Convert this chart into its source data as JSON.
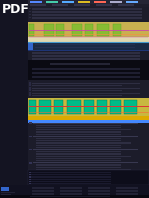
{
  "bg_dark": "#141420",
  "bg_page": "#1c1c2a",
  "bg_black": "#0a0a12",
  "bg_content": "#1a1a28",
  "pdf_color": "#ffffff",
  "pdf_size": 9,
  "nav_bg": "#1e1e2c",
  "nav_top_bg": "#252535",
  "diagram1_bg": "#c8b050",
  "diagram1_green": "#88bb33",
  "diagram1_pink": "#cc44aa",
  "diagram1_orange": "#ee8833",
  "diagram2_bg": "#c8b840",
  "diagram2_teal": "#00bb88",
  "diagram2_red": "#dd3333",
  "diagram2_yellow": "#ddaa00",
  "accent_blue": "#3366cc",
  "accent_blue2": "#4488ff",
  "text_lines": "#2e2e42",
  "text_lines2": "#383850",
  "footer_bg": "#111120",
  "left_bg": "#141422",
  "left_stripe": "#1e1e30"
}
